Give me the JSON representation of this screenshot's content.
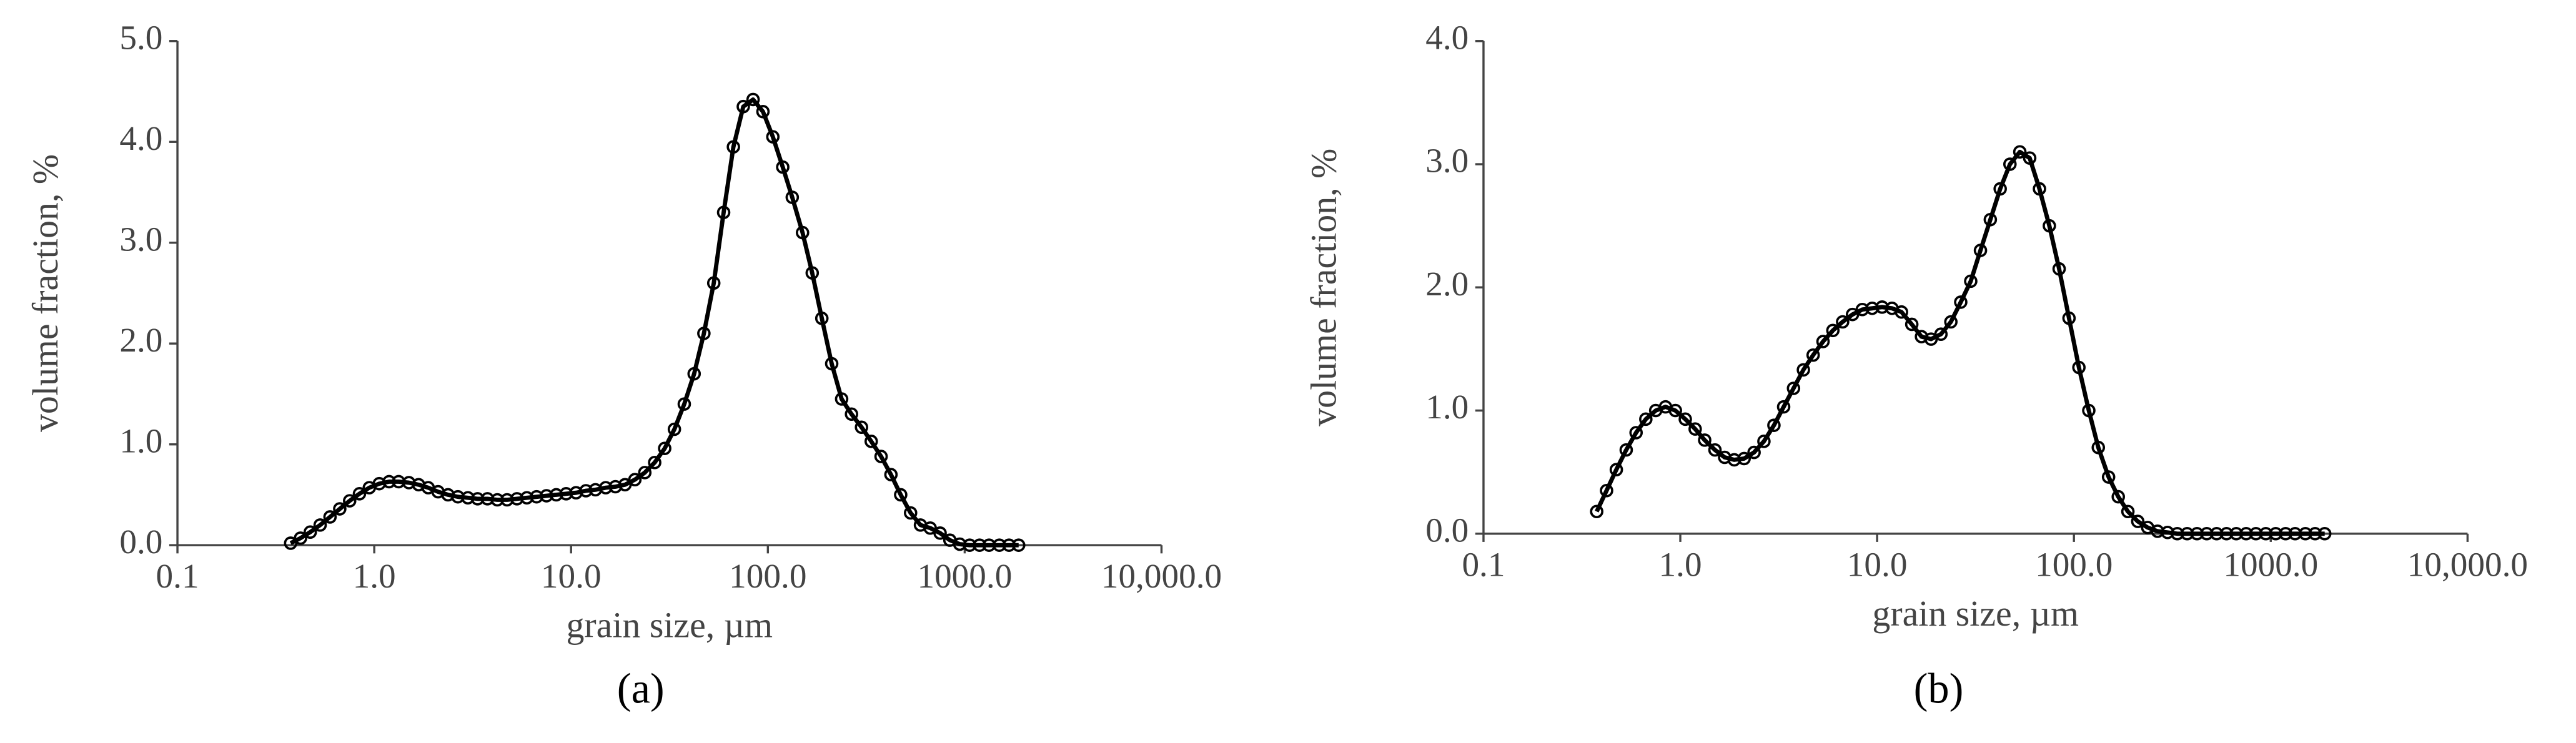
{
  "chart_data": [
    {
      "type": "line",
      "panel_label": "(a)",
      "xlabel": "grain size, µm",
      "ylabel": "volume fraction, %",
      "xscale": "log",
      "color": "#000000",
      "xlim": [
        0.1,
        10000
      ],
      "xticks": [
        0.1,
        {
          "value": 1,
          "label": "1.0"
        },
        {
          "value": 10,
          "label": "10.0"
        },
        {
          "value": 100,
          "label": "100.0"
        },
        {
          "value": 1000,
          "label": "1000.0"
        },
        {
          "value": 10000,
          "label": "10,000.0"
        }
      ],
      "ylim": [
        0,
        5
      ],
      "yticks": [
        {
          "value": 0,
          "label": "0.0"
        },
        {
          "value": 1,
          "label": "1.0"
        },
        {
          "value": 2,
          "label": "2.0"
        },
        {
          "value": 3,
          "label": "3.0"
        },
        {
          "value": 4,
          "label": "4.0"
        },
        {
          "value": 5,
          "label": "5.0"
        }
      ],
      "x": [
        0.376,
        0.422,
        0.473,
        0.531,
        0.596,
        0.668,
        0.75,
        0.841,
        0.944,
        1.06,
        1.19,
        1.33,
        1.5,
        1.68,
        1.88,
        2.11,
        2.37,
        2.66,
        2.99,
        3.35,
        3.76,
        4.22,
        4.73,
        5.31,
        5.96,
        6.68,
        7.5,
        8.41,
        9.44,
        10.6,
        11.9,
        13.3,
        15,
        16.8,
        18.8,
        21.1,
        23.7,
        26.6,
        29.9,
        33.5,
        37.6,
        42.2,
        47.3,
        53.1,
        59.6,
        66.8,
        75,
        84.1,
        94.4,
        106,
        119,
        133,
        150,
        168,
        188,
        211,
        237,
        266,
        299,
        335,
        376,
        422,
        473,
        531,
        596,
        668,
        750,
        841,
        944,
        1060,
        1190,
        1330,
        1500,
        1680,
        1880
      ],
      "values": [
        0.02,
        0.07,
        0.13,
        0.2,
        0.28,
        0.36,
        0.44,
        0.51,
        0.57,
        0.61,
        0.63,
        0.63,
        0.62,
        0.6,
        0.57,
        0.53,
        0.5,
        0.48,
        0.47,
        0.46,
        0.46,
        0.45,
        0.45,
        0.46,
        0.47,
        0.48,
        0.49,
        0.5,
        0.51,
        0.52,
        0.54,
        0.55,
        0.57,
        0.58,
        0.6,
        0.65,
        0.72,
        0.82,
        0.96,
        1.15,
        1.4,
        1.7,
        2.1,
        2.6,
        3.3,
        3.95,
        4.35,
        4.42,
        4.3,
        4.05,
        3.75,
        3.45,
        3.1,
        2.7,
        2.25,
        1.8,
        1.45,
        1.3,
        1.17,
        1.03,
        0.88,
        0.7,
        0.5,
        0.32,
        0.2,
        0.17,
        0.12,
        0.05,
        0.01,
        0,
        0,
        0,
        0,
        0,
        0
      ]
    },
    {
      "type": "line",
      "panel_label": "(b)",
      "xlabel": "grain size, µm",
      "ylabel": "volume fraction, %",
      "xscale": "log",
      "color": "#000000",
      "xlim": [
        0.1,
        10000
      ],
      "xticks": [
        0.1,
        {
          "value": 1,
          "label": "1.0"
        },
        {
          "value": 10,
          "label": "10.0"
        },
        {
          "value": 100,
          "label": "100.0"
        },
        {
          "value": 1000,
          "label": "1000.0"
        },
        {
          "value": 10000,
          "label": "10,000.0"
        }
      ],
      "ylim": [
        0,
        4
      ],
      "yticks": [
        {
          "value": 0,
          "label": "0.0"
        },
        {
          "value": 1,
          "label": "1.0"
        },
        {
          "value": 2,
          "label": "2.0"
        },
        {
          "value": 3,
          "label": "3.0"
        },
        {
          "value": 4,
          "label": "4.0"
        }
      ],
      "x": [
        0.376,
        0.422,
        0.473,
        0.531,
        0.596,
        0.668,
        0.75,
        0.841,
        0.944,
        1.06,
        1.19,
        1.33,
        1.5,
        1.68,
        1.88,
        2.11,
        2.37,
        2.66,
        2.99,
        3.35,
        3.76,
        4.22,
        4.73,
        5.31,
        5.96,
        6.68,
        7.5,
        8.41,
        9.44,
        10.6,
        11.9,
        13.3,
        15,
        16.8,
        18.8,
        21.1,
        23.7,
        26.6,
        29.9,
        33.5,
        37.6,
        42.2,
        47.3,
        53.1,
        59.6,
        66.8,
        75,
        84.1,
        94.4,
        106,
        119,
        133,
        150,
        168,
        188,
        211,
        237,
        266,
        299,
        335,
        376,
        422,
        473,
        531,
        596,
        668,
        750,
        841,
        944,
        1060,
        1190,
        1330,
        1500,
        1680,
        1880
      ],
      "values": [
        0.18,
        0.35,
        0.52,
        0.68,
        0.82,
        0.93,
        1,
        1.03,
        1,
        0.93,
        0.85,
        0.76,
        0.68,
        0.62,
        0.6,
        0.61,
        0.66,
        0.75,
        0.88,
        1.03,
        1.18,
        1.33,
        1.45,
        1.56,
        1.65,
        1.72,
        1.78,
        1.82,
        1.83,
        1.84,
        1.83,
        1.8,
        1.7,
        1.6,
        1.58,
        1.62,
        1.72,
        1.88,
        2.05,
        2.3,
        2.55,
        2.8,
        3,
        3.1,
        3.05,
        2.8,
        2.5,
        2.15,
        1.75,
        1.35,
        1,
        0.7,
        0.46,
        0.3,
        0.18,
        0.1,
        0.05,
        0.02,
        0.01,
        0,
        0,
        0,
        0,
        0,
        0,
        0,
        0,
        0,
        0,
        0,
        0,
        0,
        0,
        0,
        0
      ]
    }
  ]
}
